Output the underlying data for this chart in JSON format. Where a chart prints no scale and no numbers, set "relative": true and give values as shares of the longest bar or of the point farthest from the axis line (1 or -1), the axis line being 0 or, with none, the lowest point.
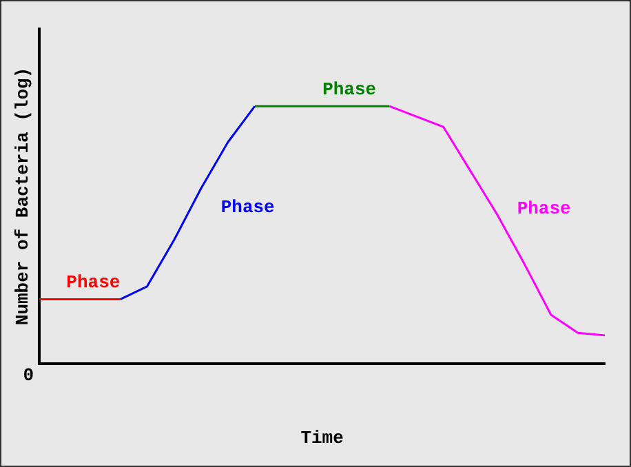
{
  "chart_data": {
    "type": "line",
    "relative": true,
    "xlabel": "Time",
    "ylabel": "Number of Bacteria (log)",
    "categories": [
      null,
      null,
      null,
      null,
      null,
      null,
      null,
      null,
      null,
      null,
      null,
      null,
      null,
      null,
      null,
      null,
      null,
      null,
      null,
      null,
      null,
      null
    ],
    "series": [
      {
        "name": "Phase",
        "color": "#ff0000",
        "values": [
          0.25,
          0.25,
          0.25,
          0.25,
          null,
          null,
          null,
          null,
          null,
          null,
          null,
          null,
          null,
          null,
          null,
          null,
          null,
          null,
          null,
          null,
          null,
          null
        ]
      },
      {
        "name": "Phase",
        "color": "#0000ff",
        "values": [
          null,
          null,
          null,
          0.25,
          0.3,
          0.48,
          0.68,
          0.86,
          1,
          null,
          null,
          null,
          null,
          null,
          null,
          null,
          null,
          null,
          null,
          null,
          null,
          null
        ]
      },
      {
        "name": "Phase",
        "color": "#008000",
        "values": [
          null,
          null,
          null,
          null,
          null,
          null,
          null,
          null,
          1,
          1,
          1,
          1,
          1,
          1,
          null,
          null,
          null,
          null,
          null,
          null,
          null,
          null
        ]
      },
      {
        "name": "Phase",
        "color": "#ff00ff",
        "values": [
          null,
          null,
          null,
          null,
          null,
          null,
          null,
          null,
          null,
          null,
          null,
          null,
          null,
          1,
          0.96,
          0.92,
          0.75,
          0.58,
          0.39,
          0.19,
          0.12,
          0.11
        ]
      }
    ],
    "annotations": [
      "0"
    ],
    "grid": false,
    "legend": false,
    "marker": "none",
    "line_style": "solid"
  }
}
